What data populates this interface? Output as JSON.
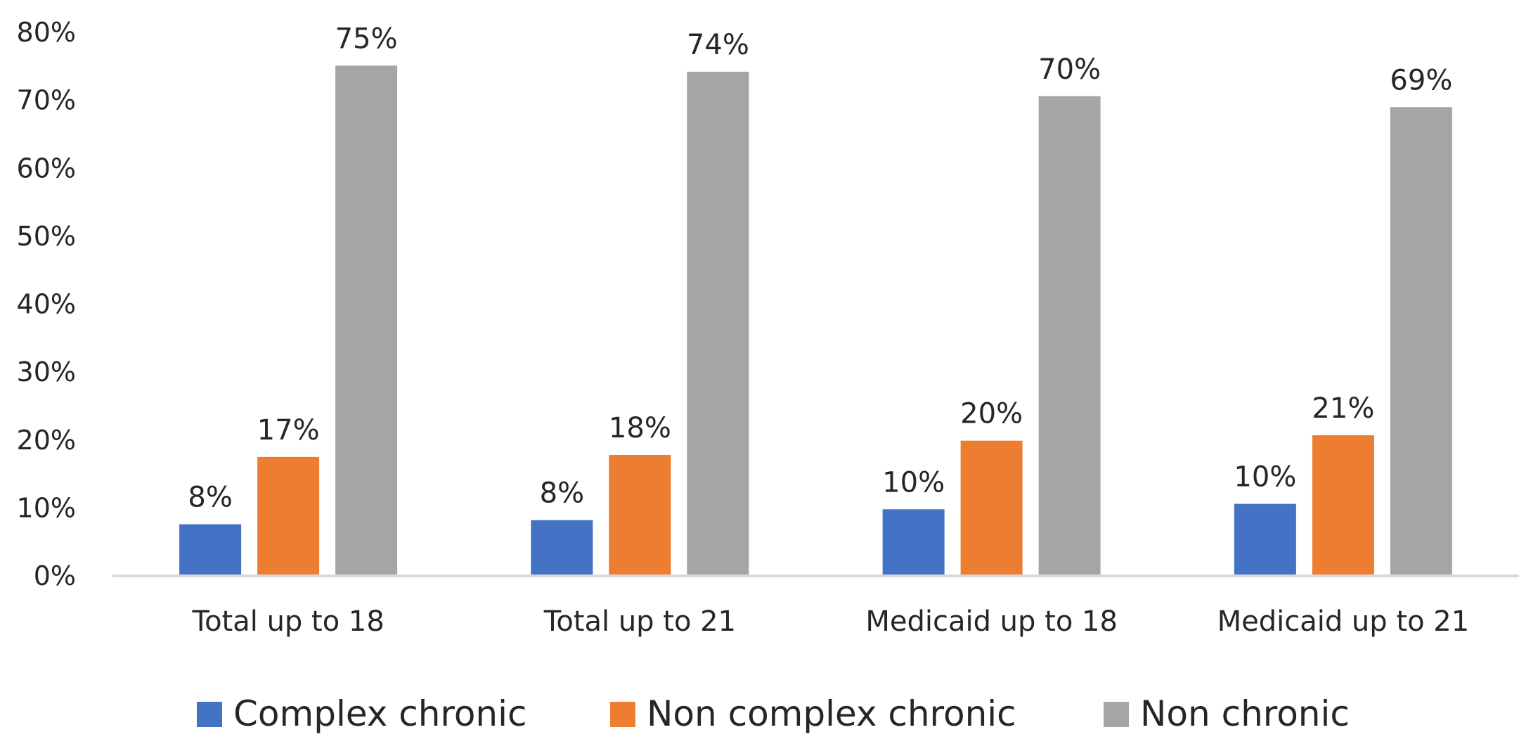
{
  "chart_data": {
    "type": "bar",
    "title": "",
    "xlabel": "",
    "ylabel": "",
    "categories": [
      "Total up to 18",
      "Total up to 21",
      "Medicaid up to 18",
      "Medicaid up to 21"
    ],
    "series": [
      {
        "name": "Complex chronic",
        "color": "#4472C4",
        "values": [
          7.5,
          8.1,
          9.7,
          10.5
        ],
        "labels": [
          "8%",
          "8%",
          "10%",
          "10%"
        ]
      },
      {
        "name": "Non complex chronic",
        "color": "#ED7D31",
        "values": [
          17.4,
          17.7,
          19.8,
          20.6
        ],
        "labels": [
          "17%",
          "18%",
          "20%",
          "21%"
        ]
      },
      {
        "name": "Non chronic",
        "color": "#A5A5A5",
        "values": [
          75.0,
          74.1,
          70.5,
          68.9
        ],
        "labels": [
          "75%",
          "74%",
          "70%",
          "69%"
        ]
      }
    ],
    "ylim": [
      0,
      80
    ],
    "yticks": [
      0,
      10,
      20,
      30,
      40,
      50,
      60,
      70,
      80
    ],
    "ytick_labels": [
      "0%",
      "10%",
      "20%",
      "30%",
      "40%",
      "50%",
      "60%",
      "70%",
      "80%"
    ],
    "grid": false,
    "legend_position": "bottom"
  }
}
